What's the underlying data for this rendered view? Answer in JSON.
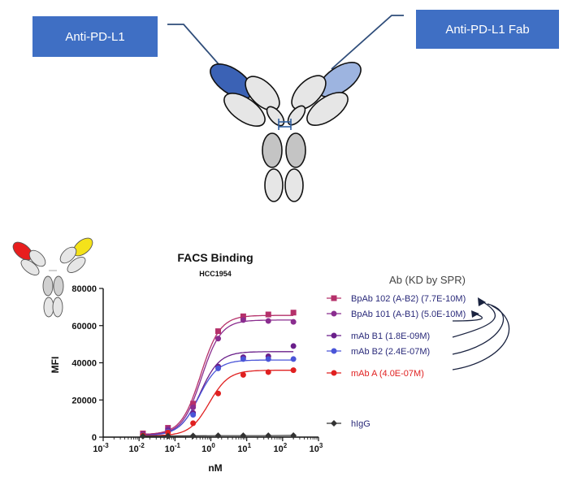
{
  "labels": {
    "left_box": "Anti-PD-L1",
    "right_box": "Anti-PD-L1 Fab"
  },
  "colors": {
    "box": "#3f6fc4",
    "dark_blue_domain": "#3b62b5",
    "light_blue_domain": "#9db4e0",
    "red_domain": "#e81e1e",
    "yellow_domain": "#f4e21a",
    "series_102": "#b5306a",
    "series_101": "#8a2d8f",
    "series_b1": "#6a1f8a",
    "series_b2": "#4a55d8",
    "series_a": "#e02020",
    "series_higg": "#333333"
  },
  "chart_data": {
    "type": "line",
    "title": "FACS Binding",
    "subtitle": "HCC1954",
    "xlabel": "nM",
    "ylabel": "MFI",
    "x_scale": "log",
    "xlim": [
      0.001,
      1000
    ],
    "ylim": [
      0,
      80000
    ],
    "x_ticks": [
      0.001,
      0.01,
      0.1,
      1,
      10,
      100,
      1000
    ],
    "x_tick_labels": [
      {
        "base": "10",
        "exp": "-3"
      },
      {
        "base": "10",
        "exp": "-2"
      },
      {
        "base": "10",
        "exp": "-1"
      },
      {
        "base": "10",
        "exp": "0"
      },
      {
        "base": "10",
        "exp": "1"
      },
      {
        "base": "10",
        "exp": "2"
      },
      {
        "base": "10",
        "exp": "3"
      }
    ],
    "y_ticks": [
      0,
      20000,
      40000,
      60000,
      80000
    ],
    "y_tick_labels": [
      "0",
      "20000",
      "40000",
      "60000",
      "80000"
    ],
    "legend_title": "Ab (KD by SPR)",
    "legend_position": "right",
    "x": [
      0.0128,
      0.064,
      0.32,
      1.6,
      8,
      40,
      200
    ],
    "series": [
      {
        "name": "BpAb 102 (A-B2) (7.7E-10M)",
        "color": "#b5306a",
        "marker": "square",
        "values": [
          2000,
          5000,
          18000,
          57000,
          65000,
          66000,
          67000
        ],
        "fit_top": 65500,
        "fit_ec50": 0.52
      },
      {
        "name": "BpAb 101 (A-B1) (5.0E-10M)",
        "color": "#8a2d8f",
        "marker": "circle",
        "values": [
          1500,
          4500,
          16000,
          53000,
          63000,
          62500,
          62000
        ],
        "fit_top": 63000,
        "fit_ec50": 0.55
      },
      {
        "name": "mAb B1 (1.8E-09M)",
        "color": "#6a1f8a",
        "marker": "circle",
        "values": [
          1500,
          3500,
          13000,
          38000,
          43000,
          43500,
          49000
        ],
        "fit_top": 46000,
        "fit_ec50": 0.5
      },
      {
        "name": "mAb B2 (2.4E-07M)",
        "color": "#4a55d8",
        "marker": "circle",
        "values": [
          1200,
          3000,
          12000,
          37000,
          42000,
          42000,
          42000
        ],
        "fit_top": 41500,
        "fit_ec50": 0.45
      },
      {
        "name": "mAb A (4.0E-07M)",
        "color": "#e02020",
        "marker": "circle",
        "values": [
          1000,
          2500,
          7500,
          23500,
          33500,
          35000,
          36000
        ],
        "fit_top": 36000,
        "fit_ec50": 0.9
      },
      {
        "name": "hIgG",
        "color": "#333333",
        "marker": "diamond",
        "values": [
          500,
          600,
          700,
          800,
          800,
          800,
          900
        ]
      }
    ]
  }
}
